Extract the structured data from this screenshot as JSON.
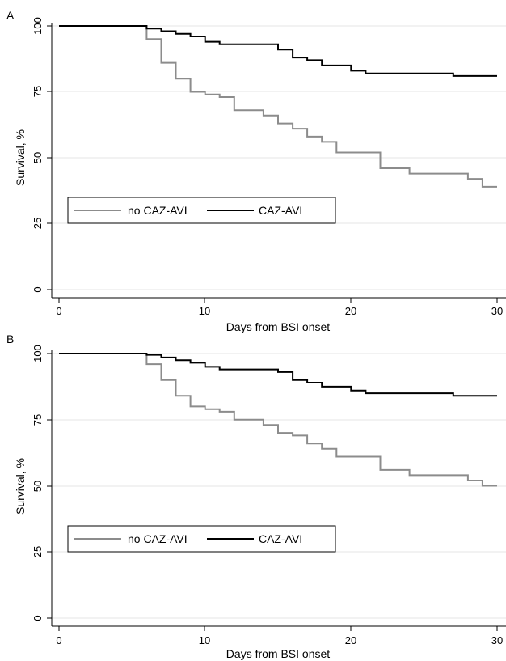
{
  "colors": {
    "no_caz_avi": "#8c8c8c",
    "caz_avi": "#000000",
    "grid": "#e6e6e6",
    "axis": "#000000"
  },
  "chart_data": [
    {
      "type": "line",
      "step": true,
      "panel_label": "A",
      "xlabel": "Days from BSI onset",
      "ylabel": "Survival, %",
      "xlim": [
        0,
        30
      ],
      "ylim": [
        0,
        100
      ],
      "xticks": [
        0,
        10,
        20,
        30
      ],
      "yticks": [
        0,
        25,
        50,
        75,
        100
      ],
      "grid": true,
      "legend_position": "lower-left",
      "series": [
        {
          "name": "no CAZ-AVI",
          "x": [
            0,
            6,
            7,
            8,
            9,
            10,
            11,
            12,
            14,
            15,
            16,
            17,
            18,
            19,
            22,
            24,
            28,
            29,
            30
          ],
          "y": [
            100,
            95,
            86,
            80,
            75,
            74,
            73,
            68,
            66,
            63,
            61,
            58,
            56,
            52,
            46,
            44,
            42,
            39,
            39
          ]
        },
        {
          "name": "CAZ-AVI",
          "x": [
            0,
            6,
            7,
            8,
            9,
            10,
            11,
            15,
            16,
            17,
            18,
            20,
            21,
            27,
            30
          ],
          "y": [
            100,
            99,
            98,
            97,
            96,
            94,
            93,
            91,
            88,
            87,
            85,
            83,
            82,
            81,
            81
          ]
        }
      ]
    },
    {
      "type": "line",
      "step": true,
      "panel_label": "B",
      "xlabel": "Days from BSI onset",
      "ylabel": "Survival, %",
      "xlim": [
        0,
        30
      ],
      "ylim": [
        0,
        100
      ],
      "xticks": [
        0,
        10,
        20,
        30
      ],
      "yticks": [
        0,
        25,
        50,
        75,
        100
      ],
      "grid": true,
      "legend_position": "lower-left",
      "series": [
        {
          "name": "no CAZ-AVI",
          "x": [
            0,
            6,
            7,
            8,
            9,
            10,
            11,
            12,
            14,
            15,
            16,
            17,
            18,
            19,
            22,
            24,
            28,
            29,
            30
          ],
          "y": [
            100,
            96,
            90,
            84,
            80,
            79,
            78,
            75,
            73,
            70,
            69,
            66,
            64,
            61,
            56,
            54,
            52,
            50,
            50
          ]
        },
        {
          "name": "CAZ-AVI",
          "x": [
            0,
            6,
            7,
            8,
            9,
            10,
            11,
            15,
            16,
            17,
            18,
            20,
            21,
            27,
            30
          ],
          "y": [
            100,
            99.5,
            98.5,
            97.5,
            96.5,
            95,
            94,
            93,
            90,
            89,
            87.5,
            86,
            85,
            84,
            84
          ]
        }
      ]
    }
  ]
}
